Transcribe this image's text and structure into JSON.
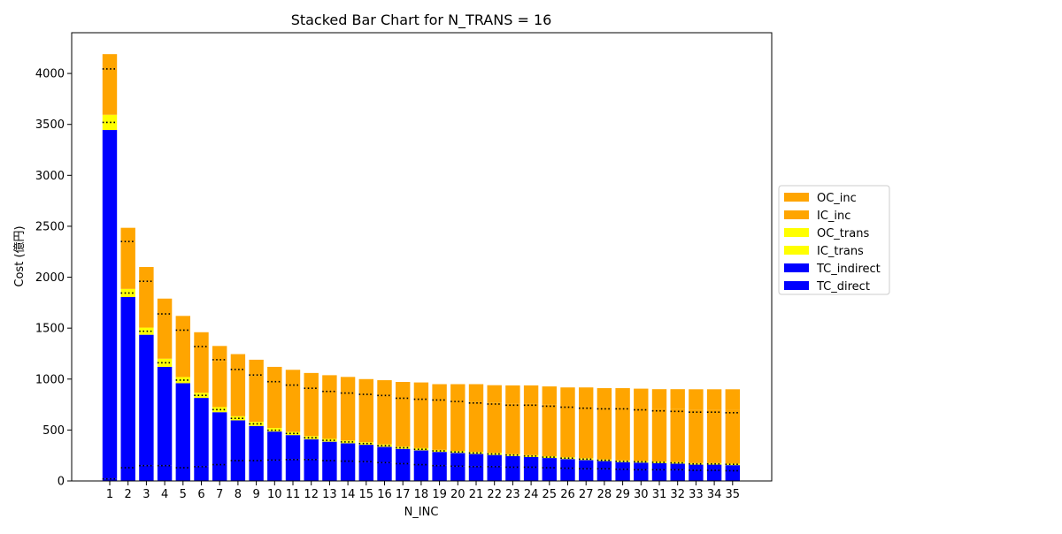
{
  "chart_data": {
    "type": "bar",
    "stacked": true,
    "title": "Stacked Bar Chart for N_TRANS = 16",
    "xlabel": "N_INC",
    "ylabel": "Cost (億円)",
    "ylim": [
      0,
      4400
    ],
    "yticks": [
      0,
      500,
      1000,
      1500,
      2000,
      2500,
      3000,
      3500,
      4000
    ],
    "grid": false,
    "legend_position": "right",
    "categories": [
      "1",
      "2",
      "3",
      "4",
      "5",
      "6",
      "7",
      "8",
      "9",
      "10",
      "11",
      "12",
      "13",
      "14",
      "15",
      "16",
      "17",
      "18",
      "19",
      "20",
      "21",
      "22",
      "23",
      "24",
      "25",
      "26",
      "27",
      "28",
      "29",
      "30",
      "31",
      "32",
      "33",
      "34",
      "35"
    ],
    "series": [
      {
        "name": "TC_direct",
        "color": "#0000ff",
        "values": [
          20,
          130,
          150,
          150,
          130,
          140,
          160,
          200,
          200,
          205,
          210,
          210,
          200,
          195,
          190,
          180,
          170,
          160,
          150,
          145,
          140,
          140,
          135,
          135,
          130,
          125,
          120,
          120,
          115,
          110,
          110,
          110,
          105,
          105,
          100
        ]
      },
      {
        "name": "TC_indirect",
        "color": "#0000ff",
        "values": [
          3425,
          1675,
          1285,
          970,
          830,
          675,
          515,
          395,
          340,
          280,
          240,
          200,
          185,
          175,
          165,
          155,
          145,
          140,
          135,
          130,
          125,
          115,
          110,
          100,
          95,
          90,
          85,
          75,
          70,
          70,
          65,
          60,
          55,
          55,
          55
        ]
      },
      {
        "name": "IC_trans",
        "color": "#ffff00",
        "values": [
          75,
          40,
          35,
          40,
          30,
          25,
          25,
          20,
          20,
          18,
          16,
          15,
          14,
          13,
          12,
          12,
          11,
          11,
          10,
          10,
          10,
          10,
          9,
          9,
          9,
          9,
          9,
          8,
          8,
          8,
          8,
          8,
          8,
          8,
          8
        ]
      },
      {
        "name": "OC_trans",
        "color": "#ffff00",
        "values": [
          75,
          40,
          35,
          40,
          30,
          25,
          25,
          20,
          20,
          17,
          15,
          15,
          14,
          13,
          13,
          12,
          11,
          11,
          10,
          10,
          10,
          10,
          9,
          9,
          9,
          9,
          9,
          8,
          8,
          8,
          8,
          8,
          7,
          7,
          7
        ]
      },
      {
        "name": "IC_inc",
        "color": "#ffa500",
        "values": [
          450,
          465,
          455,
          440,
          460,
          455,
          450,
          460,
          460,
          460,
          460,
          470,
          480,
          480,
          475,
          480,
          475,
          480,
          490,
          490,
          495,
          495,
          495,
          505,
          505,
          505,
          510,
          510,
          520,
          520,
          520,
          520,
          525,
          525,
          525
        ]
      },
      {
        "name": "OC_inc",
        "color": "#ffa500",
        "values": [
          145,
          135,
          140,
          150,
          140,
          140,
          150,
          150,
          150,
          140,
          150,
          150,
          145,
          145,
          145,
          150,
          160,
          165,
          155,
          165,
          170,
          170,
          180,
          180,
          180,
          180,
          185,
          190,
          190,
          190,
          190,
          195,
          200,
          200,
          205
        ]
      }
    ],
    "dotted_levels": {
      "TC_direct": [
        20,
        130,
        150,
        150,
        130,
        140,
        160,
        200,
        200,
        205,
        210,
        210,
        200,
        195,
        190,
        180,
        170,
        160,
        150,
        145,
        140,
        140,
        135,
        135,
        130,
        125,
        120,
        120,
        115,
        110,
        110,
        110,
        105,
        105,
        100
      ],
      "IC_trans": [
        3520,
        1845,
        1470,
        1160,
        990,
        840,
        700,
        615,
        560,
        498,
        466,
        425,
        399,
        383,
        367,
        347,
        326,
        311,
        295,
        285,
        275,
        265,
        254,
        244,
        234,
        224,
        214,
        203,
        193,
        188,
        183,
        178,
        168,
        168,
        163
      ],
      "IC_inc": [
        4045,
        2350,
        1960,
        1640,
        1480,
        1320,
        1190,
        1095,
        1040,
        975,
        941,
        910,
        879,
        863,
        850,
        839,
        812,
        802,
        795,
        780,
        765,
        755,
        744,
        744,
        734,
        724,
        714,
        708,
        708,
        698,
        688,
        683,
        675,
        675,
        670
      ]
    },
    "legend": [
      "OC_inc",
      "IC_inc",
      "OC_trans",
      "IC_trans",
      "TC_indirect",
      "TC_direct"
    ]
  }
}
